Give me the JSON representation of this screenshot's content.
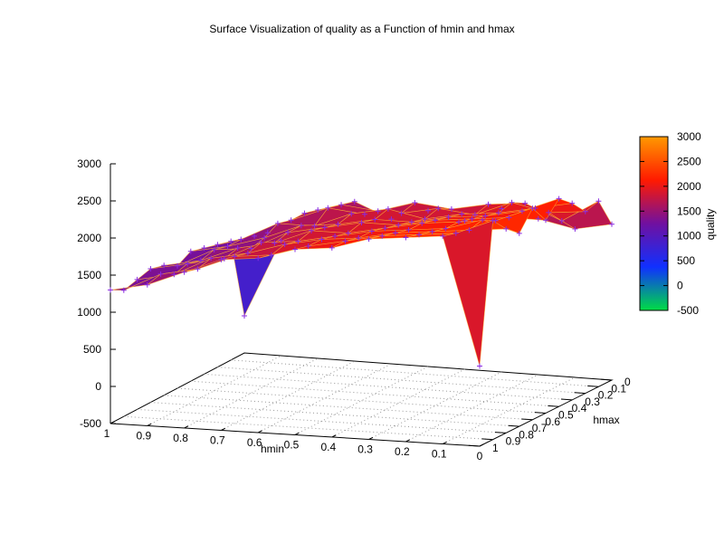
{
  "chart_data": {
    "type": "surface",
    "title": "Surface Visualization of quality as a Function of hmin and hmax",
    "xlabel": "hmin",
    "ylabel": "hmax",
    "zlabel": "quality",
    "x_ticks": [
      "1",
      "0.9",
      "0.8",
      "0.7",
      "0.6",
      "0.5",
      "0.4",
      "0.3",
      "0.2",
      "0.1",
      "0"
    ],
    "y_ticks": [
      "0",
      "0.1",
      "0.2",
      "0.3",
      "0.4",
      "0.5",
      "0.6",
      "0.7",
      "0.8",
      "0.9",
      "1"
    ],
    "z_ticks": [
      "3000",
      "2500",
      "2000",
      "1500",
      "1000",
      "500",
      "0",
      "-500"
    ],
    "colorbar_ticks": [
      "3000",
      "2500",
      "2000",
      "1500",
      "1000",
      "500",
      "0",
      "-500"
    ],
    "xlim": [
      0,
      1
    ],
    "ylim": [
      0,
      1
    ],
    "zlim": [
      -500,
      3000
    ],
    "cblim": [
      -500,
      3000
    ],
    "palette": [
      "#00dd44",
      "#1030ff",
      "#7010a0",
      "#ff1a00",
      "#ff9900"
    ],
    "mesh_color": "#8a2be2",
    "grid_x": [
      1.0,
      0.9,
      0.8,
      0.7,
      0.6,
      0.5,
      0.4,
      0.3,
      0.2,
      0.1,
      0.0
    ],
    "grid_y": [
      0.0,
      0.1,
      0.2,
      0.3,
      0.4,
      0.5,
      0.6,
      0.7,
      0.8,
      0.9,
      1.0
    ],
    "rows": [
      [
        0,
        1050,
        1500,
        1650,
        1450,
        1600,
        1500,
        1700,
        1600,
        1500,
        1600
      ],
      [
        1100,
        1250,
        1550,
        1700,
        1650,
        1800,
        1750,
        1850,
        1900,
        1700,
        2000
      ],
      [
        1150,
        1300,
        1550,
        1750,
        1700,
        1750,
        1850,
        1800,
        2000,
        1900,
        1950
      ],
      [
        1200,
        1350,
        1600,
        1600,
        1800,
        1900,
        1800,
        1900,
        1950,
        2050,
        2150
      ],
      [
        1250,
        1350,
        1500,
        1700,
        1750,
        1850,
        1850,
        1950,
        2000,
        2100,
        2300
      ],
      [
        1150,
        1400,
        1450,
        1700,
        1800,
        1900,
        1900,
        2000,
        2050,
        2100,
        2100
      ],
      [
        1250,
        1350,
        1550,
        1650,
        1850,
        1850,
        1950,
        2050,
        2100,
        2150,
        2350
      ],
      [
        1300,
        1400,
        1500,
        1750,
        1800,
        1900,
        2000,
        2050,
        2100,
        2250,
        2100
      ],
      [
        1250,
        1350,
        1600,
        1700,
        1850,
        1950,
        2000,
        2100,
        2150,
        2200,
        2250
      ],
      [
        1200,
        1450,
        1550,
        1750,
        1800,
        1950,
        2050,
        2150,
        2200,
        2250,
        2450
      ],
      [
        1300,
        1400,
        1600,
        1800,
        1850,
        2000,
        2050,
        2200,
        2250,
        2300,
        580
      ]
    ]
  }
}
